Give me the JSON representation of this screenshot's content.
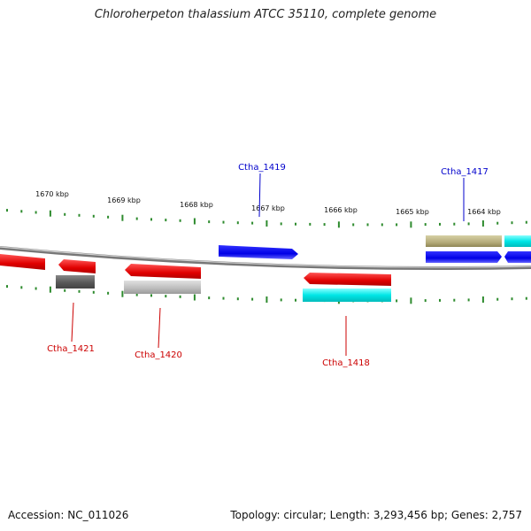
{
  "title": "Chloroherpeton thalassium ATCC 35110, complete genome",
  "footer": {
    "accession": "Accession: NC_011026",
    "topology": "Topology: circular",
    "length": "Length: 3,293,456 bp",
    "genes": "Genes: 2,757"
  },
  "colors": {
    "backbone": "#888888",
    "tick": "#2e8b2e",
    "forward_cds": "#0000ee",
    "reverse_cds": "#ee0000",
    "rna": "#00e0e0",
    "gray": "#555555",
    "lightgray": "#bbbbbb",
    "olive": "#b5ac7a",
    "forward_label": "#0000cc",
    "reverse_label": "#cc0000"
  },
  "scale": {
    "unit": "kbp",
    "labels": [
      "1670 kbp",
      "1669 kbp",
      "1668 kbp",
      "1667 kbp",
      "1666 kbp",
      "1665 kbp",
      "1664 kbp"
    ]
  },
  "gene_labels": [
    {
      "id": "Ctha_1419",
      "strand": "forward"
    },
    {
      "id": "Ctha_1417",
      "strand": "forward"
    },
    {
      "id": "Ctha_1421",
      "strand": "reverse"
    },
    {
      "id": "Ctha_1420",
      "strand": "reverse"
    },
    {
      "id": "Ctha_1418",
      "strand": "reverse"
    }
  ]
}
